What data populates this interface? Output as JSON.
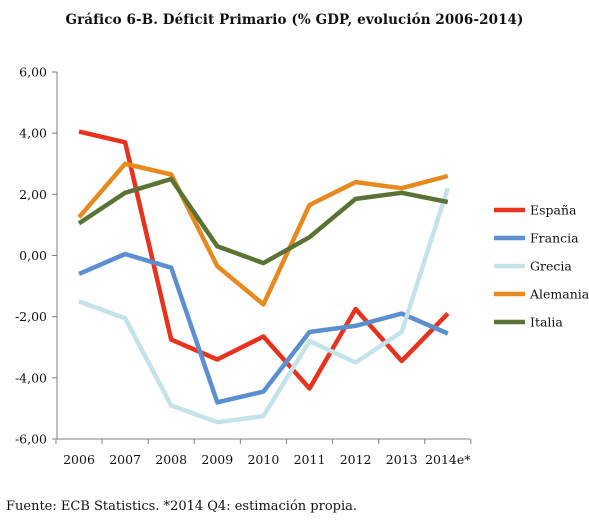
{
  "title": "Gráfico 6-B. Déficit Primario (% GDP, evolución 2006-2014)",
  "source_note": "Fuente: ECB Statistics. *2014 Q4: estimación propia.",
  "chart_data": {
    "type": "line",
    "title": "Gráfico 6-B. Déficit Primario (% GDP, evolución 2006-2014)",
    "xlabel": "",
    "ylabel": "",
    "categories": [
      "2006",
      "2007",
      "2008",
      "2009",
      "2010",
      "2011",
      "2012",
      "2013",
      "2014e*"
    ],
    "ylim": [
      -6,
      6
    ],
    "y_ticks": [
      6,
      4,
      2,
      0,
      -2,
      -4,
      -6
    ],
    "y_tick_labels": [
      "6,00",
      "4,00",
      "2,00",
      "0,00",
      "-2,00",
      "-4,00",
      "-6,00"
    ],
    "grid": false,
    "legend_position": "right",
    "series": [
      {
        "name": "España",
        "color": "#e8321e",
        "values": [
          4.05,
          3.7,
          -2.75,
          -3.4,
          -2.65,
          -4.35,
          -1.75,
          -3.45,
          -1.9
        ]
      },
      {
        "name": "Francia",
        "color": "#5b8fd0",
        "values": [
          -0.6,
          0.05,
          -0.4,
          -4.8,
          -4.45,
          -2.5,
          -2.3,
          -1.9,
          -2.55
        ]
      },
      {
        "name": "Grecia",
        "color": "#c4e2ea",
        "values": [
          -1.5,
          -2.05,
          -4.9,
          -5.45,
          -5.25,
          -2.8,
          -3.5,
          -2.5,
          2.2
        ]
      },
      {
        "name": "Alemania",
        "color": "#e8891e",
        "values": [
          1.25,
          3.0,
          2.65,
          -0.35,
          -1.6,
          1.65,
          2.4,
          2.2,
          2.6
        ]
      },
      {
        "name": "Italia",
        "color": "#5a7335",
        "values": [
          1.05,
          2.05,
          2.5,
          0.3,
          -0.25,
          0.6,
          1.85,
          2.05,
          1.75
        ]
      }
    ]
  }
}
